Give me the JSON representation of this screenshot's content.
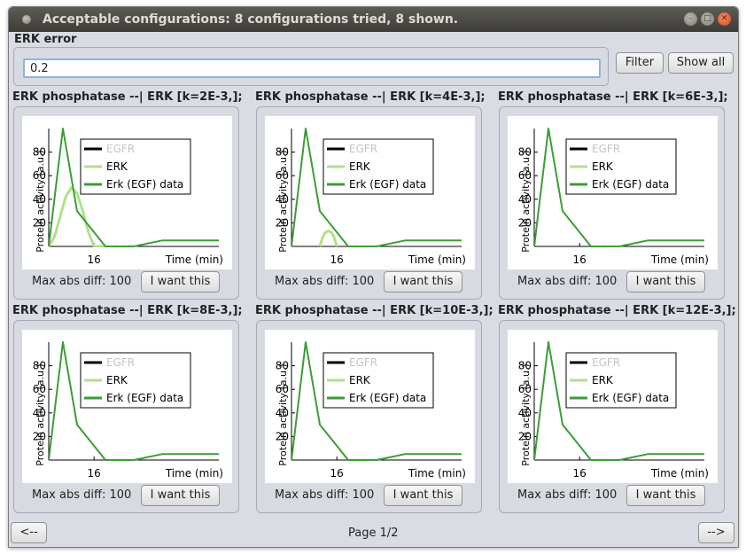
{
  "window": {
    "title": "Acceptable configurations: 8 configurations tried, 8 shown."
  },
  "error_field": {
    "label": "ERK error",
    "value": "0.2"
  },
  "buttons": {
    "filter": "Filter",
    "show_all": "Show all",
    "prev": "<--",
    "next": "-->"
  },
  "pagination": {
    "label": "Page 1/2"
  },
  "configs": [
    {
      "title": "ERK phosphatase --| ERK [k=2E-3,];",
      "max_diff_label": "Max abs diff: 100",
      "button_label": "I want this"
    },
    {
      "title": "ERK phosphatase --| ERK [k=4E-3,];",
      "max_diff_label": "Max abs diff: 100",
      "button_label": "I want this"
    },
    {
      "title": "ERK phosphatase --| ERK [k=6E-3,];",
      "max_diff_label": "Max abs diff: 100",
      "button_label": "I want this"
    },
    {
      "title": "ERK phosphatase --| ERK [k=8E-3,];",
      "max_diff_label": "Max abs diff: 100",
      "button_label": "I want this"
    },
    {
      "title": "ERK phosphatase --| ERK [k=10E-3,];",
      "max_diff_label": "Max abs diff: 100",
      "button_label": "I want this"
    },
    {
      "title": "ERK phosphatase --| ERK [k=12E-3,];",
      "max_diff_label": "Max abs diff: 100",
      "button_label": "I want this"
    }
  ],
  "colors": {
    "egfr": "#000000",
    "egfr_legend_text": "#c4c4c4",
    "erk": "#b3df8a",
    "erk_data": "#3a9e34"
  },
  "chart_data": [
    {
      "type": "line",
      "xlabel": "Time (min)",
      "ylabel": "Protein activity (a.u.)",
      "x_ticks": [
        16
      ],
      "y_ticks": [
        20,
        40,
        60,
        80
      ],
      "xlim": [
        0,
        60
      ],
      "ylim": [
        0,
        100
      ],
      "series": [
        {
          "name": "EGFR",
          "x": [],
          "y": []
        },
        {
          "name": "ERK",
          "x": [
            0,
            2,
            4,
            6,
            8,
            10,
            12,
            14,
            16,
            20
          ],
          "y": [
            0,
            8,
            25,
            42,
            50,
            45,
            30,
            12,
            0,
            0
          ]
        },
        {
          "name": "Erk (EGF) data",
          "x": [
            0,
            5,
            10,
            15,
            20,
            30,
            40,
            50,
            60
          ],
          "y": [
            0,
            100,
            30,
            15,
            0,
            0,
            5,
            5,
            5
          ]
        }
      ]
    },
    {
      "type": "line",
      "xlabel": "Time (min)",
      "ylabel": "Protein activity (a.u.)",
      "x_ticks": [
        16
      ],
      "y_ticks": [
        20,
        40,
        60,
        80
      ],
      "xlim": [
        0,
        60
      ],
      "ylim": [
        0,
        100
      ],
      "series": [
        {
          "name": "EGFR",
          "x": [],
          "y": []
        },
        {
          "name": "ERK",
          "x": [
            10,
            11,
            12,
            13,
            14,
            15,
            16
          ],
          "y": [
            0,
            8,
            12,
            13,
            12,
            8,
            0
          ]
        },
        {
          "name": "Erk (EGF) data",
          "x": [
            0,
            5,
            10,
            15,
            20,
            30,
            40,
            50,
            60
          ],
          "y": [
            0,
            100,
            30,
            15,
            0,
            0,
            5,
            5,
            5
          ]
        }
      ]
    },
    {
      "type": "line",
      "xlabel": "Time (min)",
      "ylabel": "Protein activity (a.u.)",
      "x_ticks": [
        16
      ],
      "y_ticks": [
        20,
        40,
        60,
        80
      ],
      "xlim": [
        0,
        60
      ],
      "ylim": [
        0,
        100
      ],
      "series": [
        {
          "name": "EGFR",
          "x": [],
          "y": []
        },
        {
          "name": "ERK",
          "x": [],
          "y": []
        },
        {
          "name": "Erk (EGF) data",
          "x": [
            0,
            5,
            10,
            15,
            20,
            30,
            40,
            50,
            60
          ],
          "y": [
            0,
            100,
            30,
            15,
            0,
            0,
            5,
            5,
            5
          ]
        }
      ]
    },
    {
      "type": "line",
      "xlabel": "Time (min)",
      "ylabel": "Protein activity (a.u.)",
      "x_ticks": [
        16
      ],
      "y_ticks": [
        20,
        40,
        60,
        80
      ],
      "xlim": [
        0,
        60
      ],
      "ylim": [
        0,
        100
      ],
      "series": [
        {
          "name": "EGFR",
          "x": [],
          "y": []
        },
        {
          "name": "ERK",
          "x": [],
          "y": []
        },
        {
          "name": "Erk (EGF) data",
          "x": [
            0,
            5,
            10,
            15,
            20,
            30,
            40,
            50,
            60
          ],
          "y": [
            0,
            100,
            30,
            15,
            0,
            0,
            5,
            5,
            5
          ]
        }
      ]
    },
    {
      "type": "line",
      "xlabel": "Time (min)",
      "ylabel": "Protein activity (a.u.)",
      "x_ticks": [
        16
      ],
      "y_ticks": [
        20,
        40,
        60,
        80
      ],
      "xlim": [
        0,
        60
      ],
      "ylim": [
        0,
        100
      ],
      "series": [
        {
          "name": "EGFR",
          "x": [],
          "y": []
        },
        {
          "name": "ERK",
          "x": [],
          "y": []
        },
        {
          "name": "Erk (EGF) data",
          "x": [
            0,
            5,
            10,
            15,
            20,
            30,
            40,
            50,
            60
          ],
          "y": [
            0,
            100,
            30,
            15,
            0,
            0,
            5,
            5,
            5
          ]
        }
      ]
    },
    {
      "type": "line",
      "xlabel": "Time (min)",
      "ylabel": "Protein activity (a.u.)",
      "x_ticks": [
        16
      ],
      "y_ticks": [
        20,
        40,
        60,
        80
      ],
      "xlim": [
        0,
        60
      ],
      "ylim": [
        0,
        100
      ],
      "series": [
        {
          "name": "EGFR",
          "x": [],
          "y": []
        },
        {
          "name": "ERK",
          "x": [],
          "y": []
        },
        {
          "name": "Erk (EGF) data",
          "x": [
            0,
            5,
            10,
            15,
            20,
            30,
            40,
            50,
            60
          ],
          "y": [
            0,
            100,
            30,
            15,
            0,
            0,
            5,
            5,
            5
          ]
        }
      ]
    }
  ]
}
